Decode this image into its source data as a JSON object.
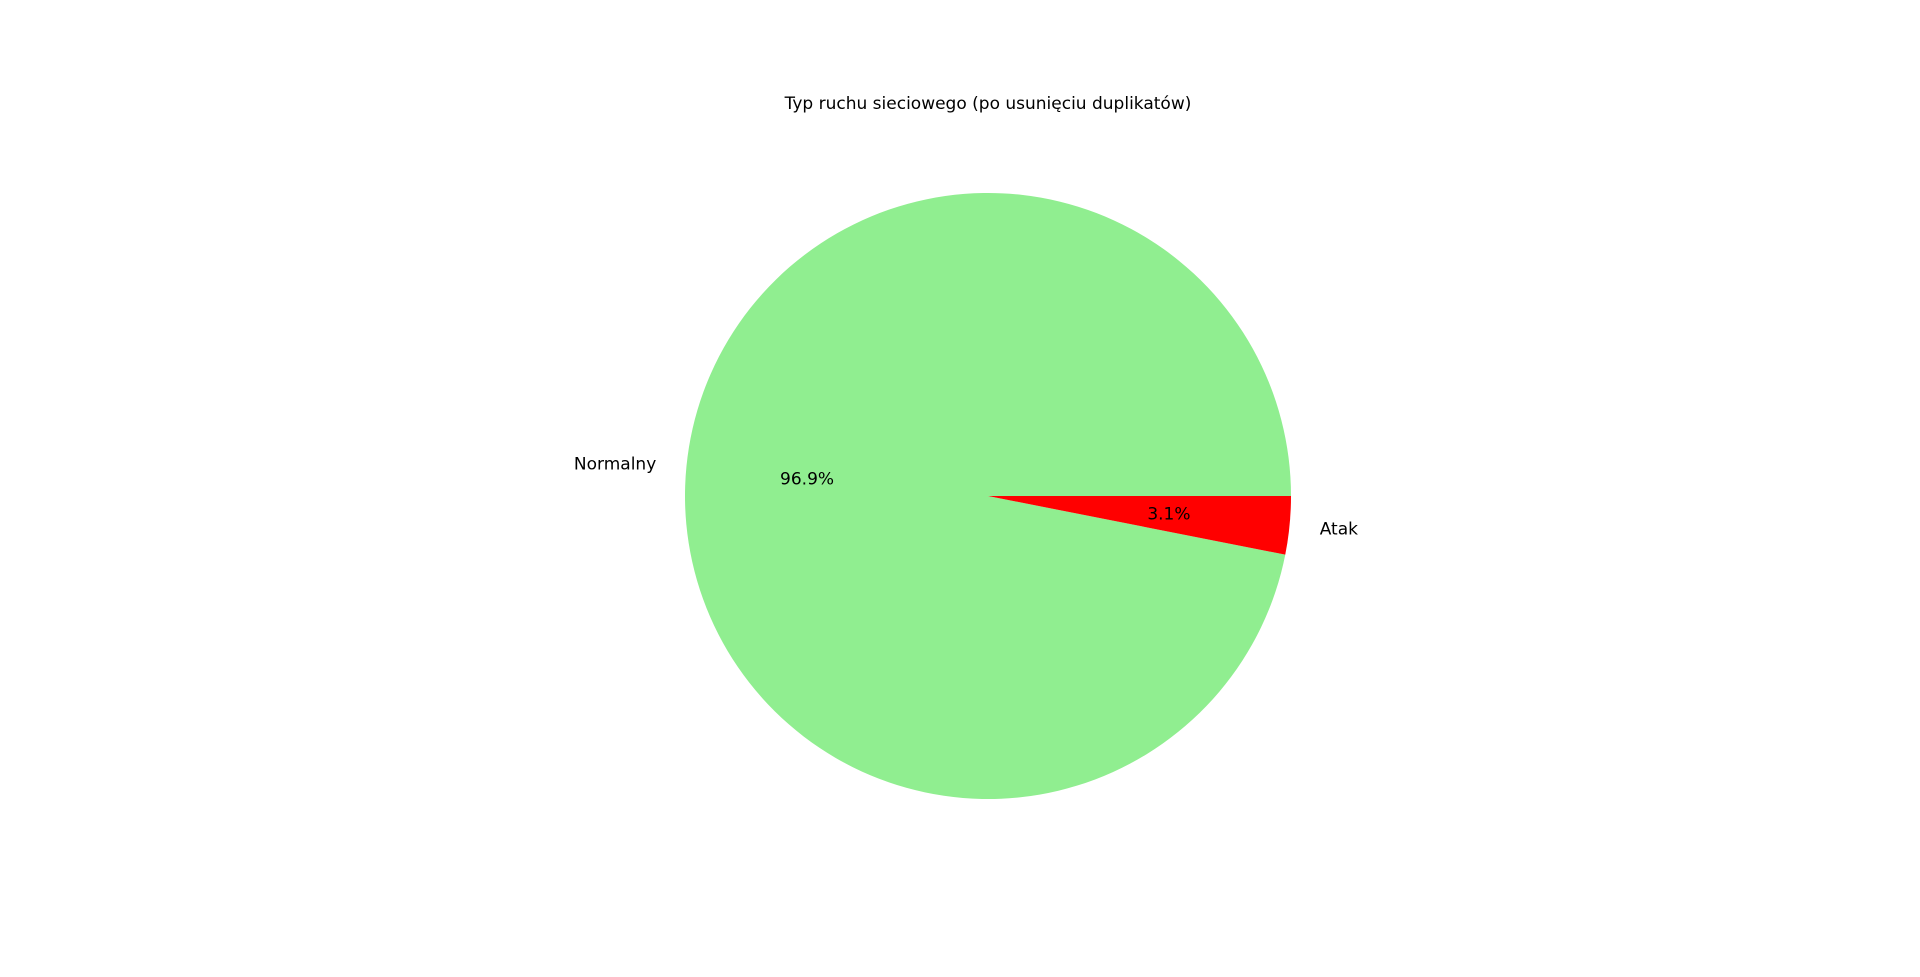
{
  "chart_data": {
    "type": "pie",
    "title": "Typ ruchu sieciowego (po usunięciu duplikatów)",
    "slices": [
      {
        "label": "Normalny",
        "value": 96.9,
        "pct_label": "96.9%",
        "color": "#90ee90"
      },
      {
        "label": "Atak",
        "value": 3.1,
        "pct_label": "3.1%",
        "color": "#ff0000"
      }
    ],
    "start_angle_deg": 0,
    "direction": "counterclockwise",
    "legend": "none"
  }
}
